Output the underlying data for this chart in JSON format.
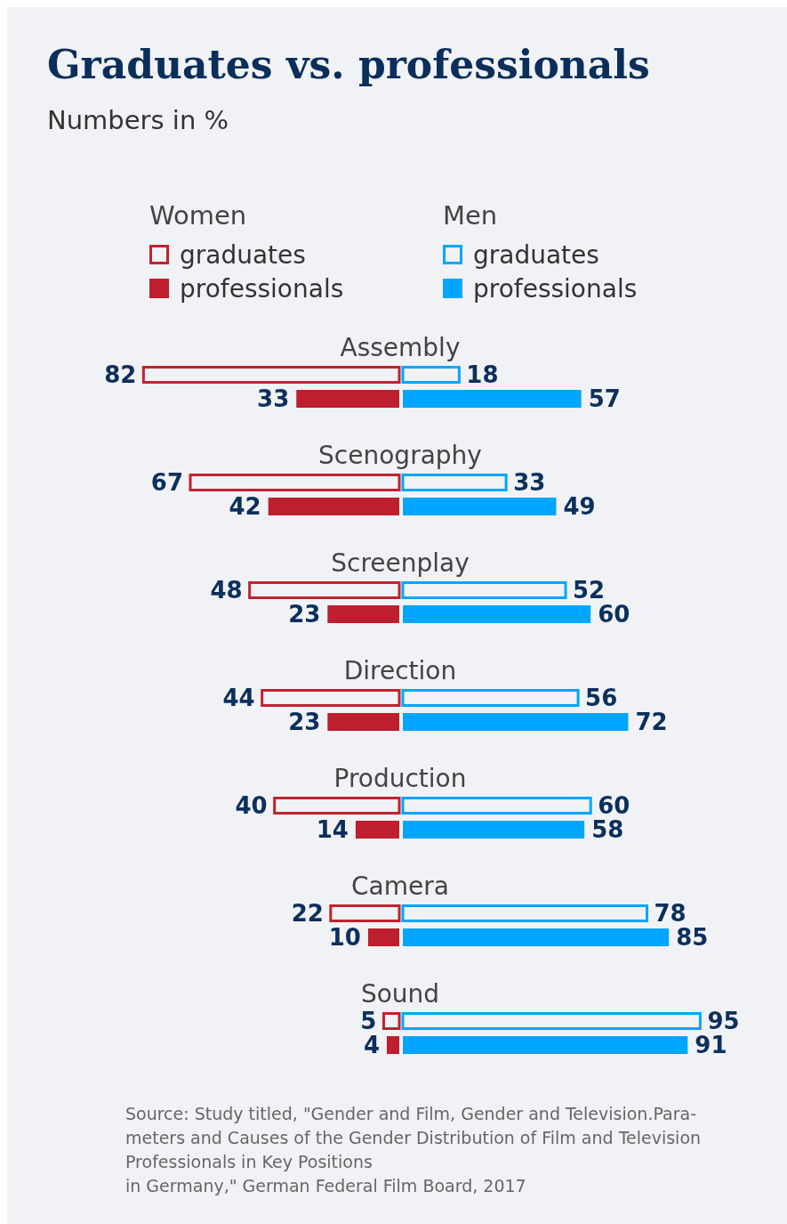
{
  "chart_data": [
    {
      "type": "bar",
      "orientation": "horizontal",
      "title": "Graduates vs. professionals",
      "subtitle": "Numbers in %",
      "categories": [
        "Assembly",
        "Scenography",
        "Screenplay",
        "Direction",
        "Production",
        "Camera",
        "Sound"
      ],
      "series": [
        {
          "name": "graduates",
          "color": "#c0232f",
          "values": [
            82,
            67,
            48,
            44,
            40,
            22,
            5
          ]
        },
        {
          "name": "professionals",
          "color": "#be1e2d",
          "values": [
            33,
            42,
            23,
            23,
            14,
            10,
            4
          ]
        }
      ],
      "data_labels": true,
      "legend": "top",
      "legend_title": "Women"
    },
    {
      "type": "bar",
      "orientation": "horizontal",
      "categories": [
        null,
        null,
        null,
        null,
        null,
        null,
        null
      ],
      "series": [
        {
          "name": "graduates",
          "color": "#00a5ff",
          "values": [
            18,
            33,
            52,
            56,
            60,
            78,
            95
          ]
        },
        {
          "name": "professionals",
          "color": "#00a5ff",
          "values": [
            57,
            49,
            60,
            72,
            58,
            85,
            91
          ]
        }
      ],
      "data_labels": true,
      "legend": "top",
      "legend_title": "Men",
      "annotations": [
        "Source: Study titled, \"Gender and Film, Gender and Television.Para-\nmeters and Causes of the Gender Distribution of Film and Television\nProfessionals in Key Positions\nin Germany,\" German Federal Film Board, 2017"
      ]
    }
  ]
}
